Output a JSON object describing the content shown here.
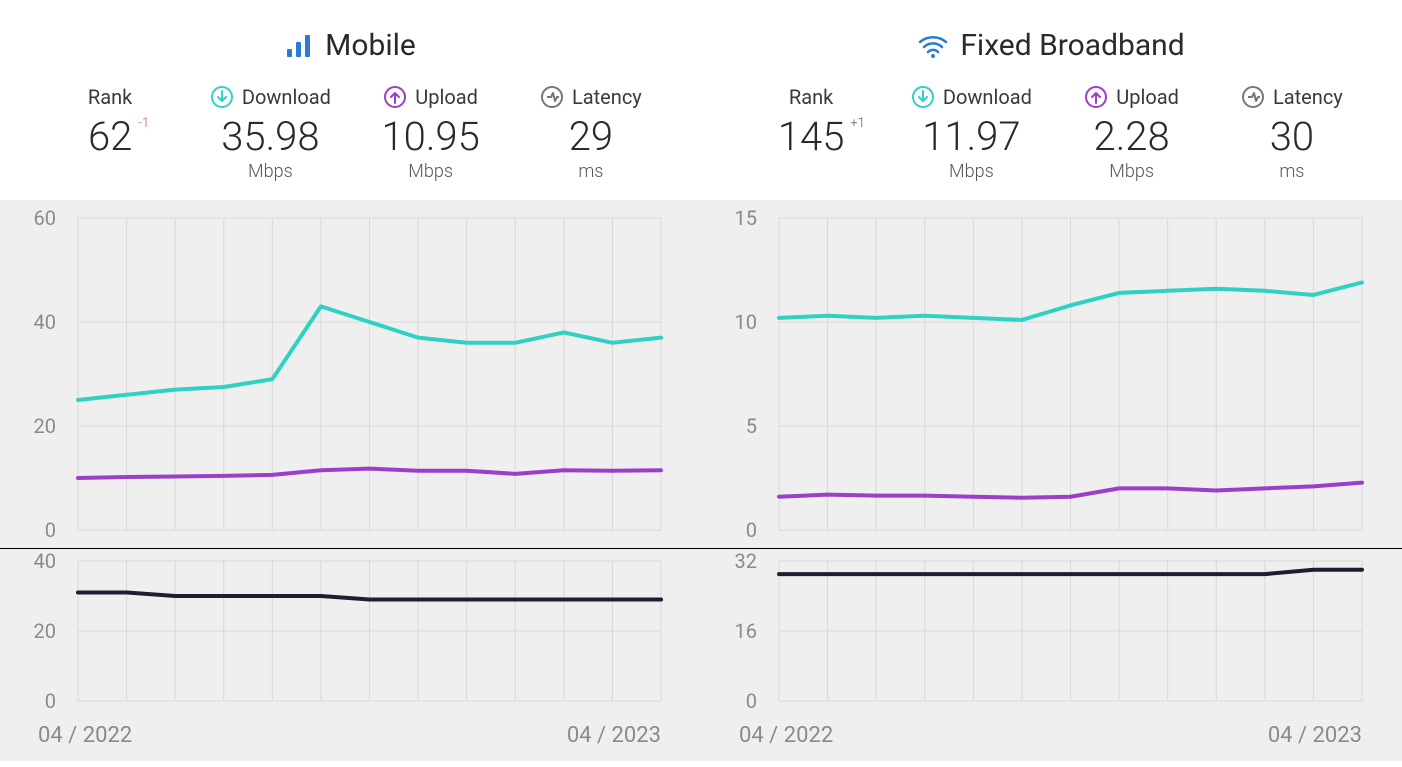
{
  "colors": {
    "download": "#2fd1c5",
    "upload": "#9b3fc8",
    "latency": "#1a1f33",
    "icon_signal": "#2a7bd1",
    "icon_wifi": "#2a7bd1",
    "latency_circle": "#777777",
    "grid": "#d8d8d8",
    "chart_bg": "#efefef",
    "text_muted": "#8a8a8a"
  },
  "panels": [
    {
      "id": "mobile",
      "title": "Mobile",
      "icon": "signal",
      "rank": {
        "label": "Rank",
        "value": "62",
        "delta": "-1",
        "delta_sign": "neg"
      },
      "download": {
        "label": "Download",
        "value": "35.98",
        "unit": "Mbps"
      },
      "upload": {
        "label": "Upload",
        "value": "10.95",
        "unit": "Mbps"
      },
      "latency": {
        "label": "Latency",
        "value": "29",
        "unit": "ms"
      },
      "main_chart": {
        "type": "line",
        "ylim": [
          0,
          60
        ],
        "yticks": [
          0,
          20,
          40,
          60
        ],
        "xrange": [
          "04 / 2022",
          "04 / 2023"
        ],
        "n_points": 13,
        "download_values": [
          25,
          26,
          27,
          27.5,
          29,
          43,
          40,
          37,
          36,
          36,
          38,
          36,
          37
        ],
        "upload_values": [
          10,
          10.2,
          10.3,
          10.4,
          10.6,
          11.5,
          11.8,
          11.4,
          11.4,
          10.8,
          11.5,
          11.4,
          11.5
        ]
      },
      "latency_chart": {
        "type": "line",
        "ylim": [
          0,
          40
        ],
        "yticks": [
          0,
          20,
          40
        ],
        "n_points": 13,
        "values": [
          31,
          31,
          30,
          30,
          30,
          30,
          29,
          29,
          29,
          29,
          29,
          29,
          29
        ]
      }
    },
    {
      "id": "broadband",
      "title": "Fixed Broadband",
      "icon": "wifi",
      "rank": {
        "label": "Rank",
        "value": "145",
        "delta": "+1",
        "delta_sign": "pos"
      },
      "download": {
        "label": "Download",
        "value": "11.97",
        "unit": "Mbps"
      },
      "upload": {
        "label": "Upload",
        "value": "2.28",
        "unit": "Mbps"
      },
      "latency": {
        "label": "Latency",
        "value": "30",
        "unit": "ms"
      },
      "main_chart": {
        "type": "line",
        "ylim": [
          0,
          15
        ],
        "yticks": [
          0,
          5,
          10,
          15
        ],
        "xrange": [
          "04 / 2022",
          "04 / 2023"
        ],
        "n_points": 13,
        "download_values": [
          10.2,
          10.3,
          10.2,
          10.3,
          10.2,
          10.1,
          10.8,
          11.4,
          11.5,
          11.6,
          11.5,
          11.3,
          11.9
        ],
        "upload_values": [
          1.6,
          1.7,
          1.65,
          1.65,
          1.6,
          1.55,
          1.6,
          2.0,
          2.0,
          1.9,
          2.0,
          2.1,
          2.28
        ]
      },
      "latency_chart": {
        "type": "line",
        "ylim": [
          0,
          32
        ],
        "yticks": [
          0,
          16,
          32
        ],
        "n_points": 13,
        "values": [
          29,
          29,
          29,
          29,
          29,
          29,
          29,
          29,
          29,
          29,
          29,
          30,
          30
        ]
      }
    }
  ]
}
